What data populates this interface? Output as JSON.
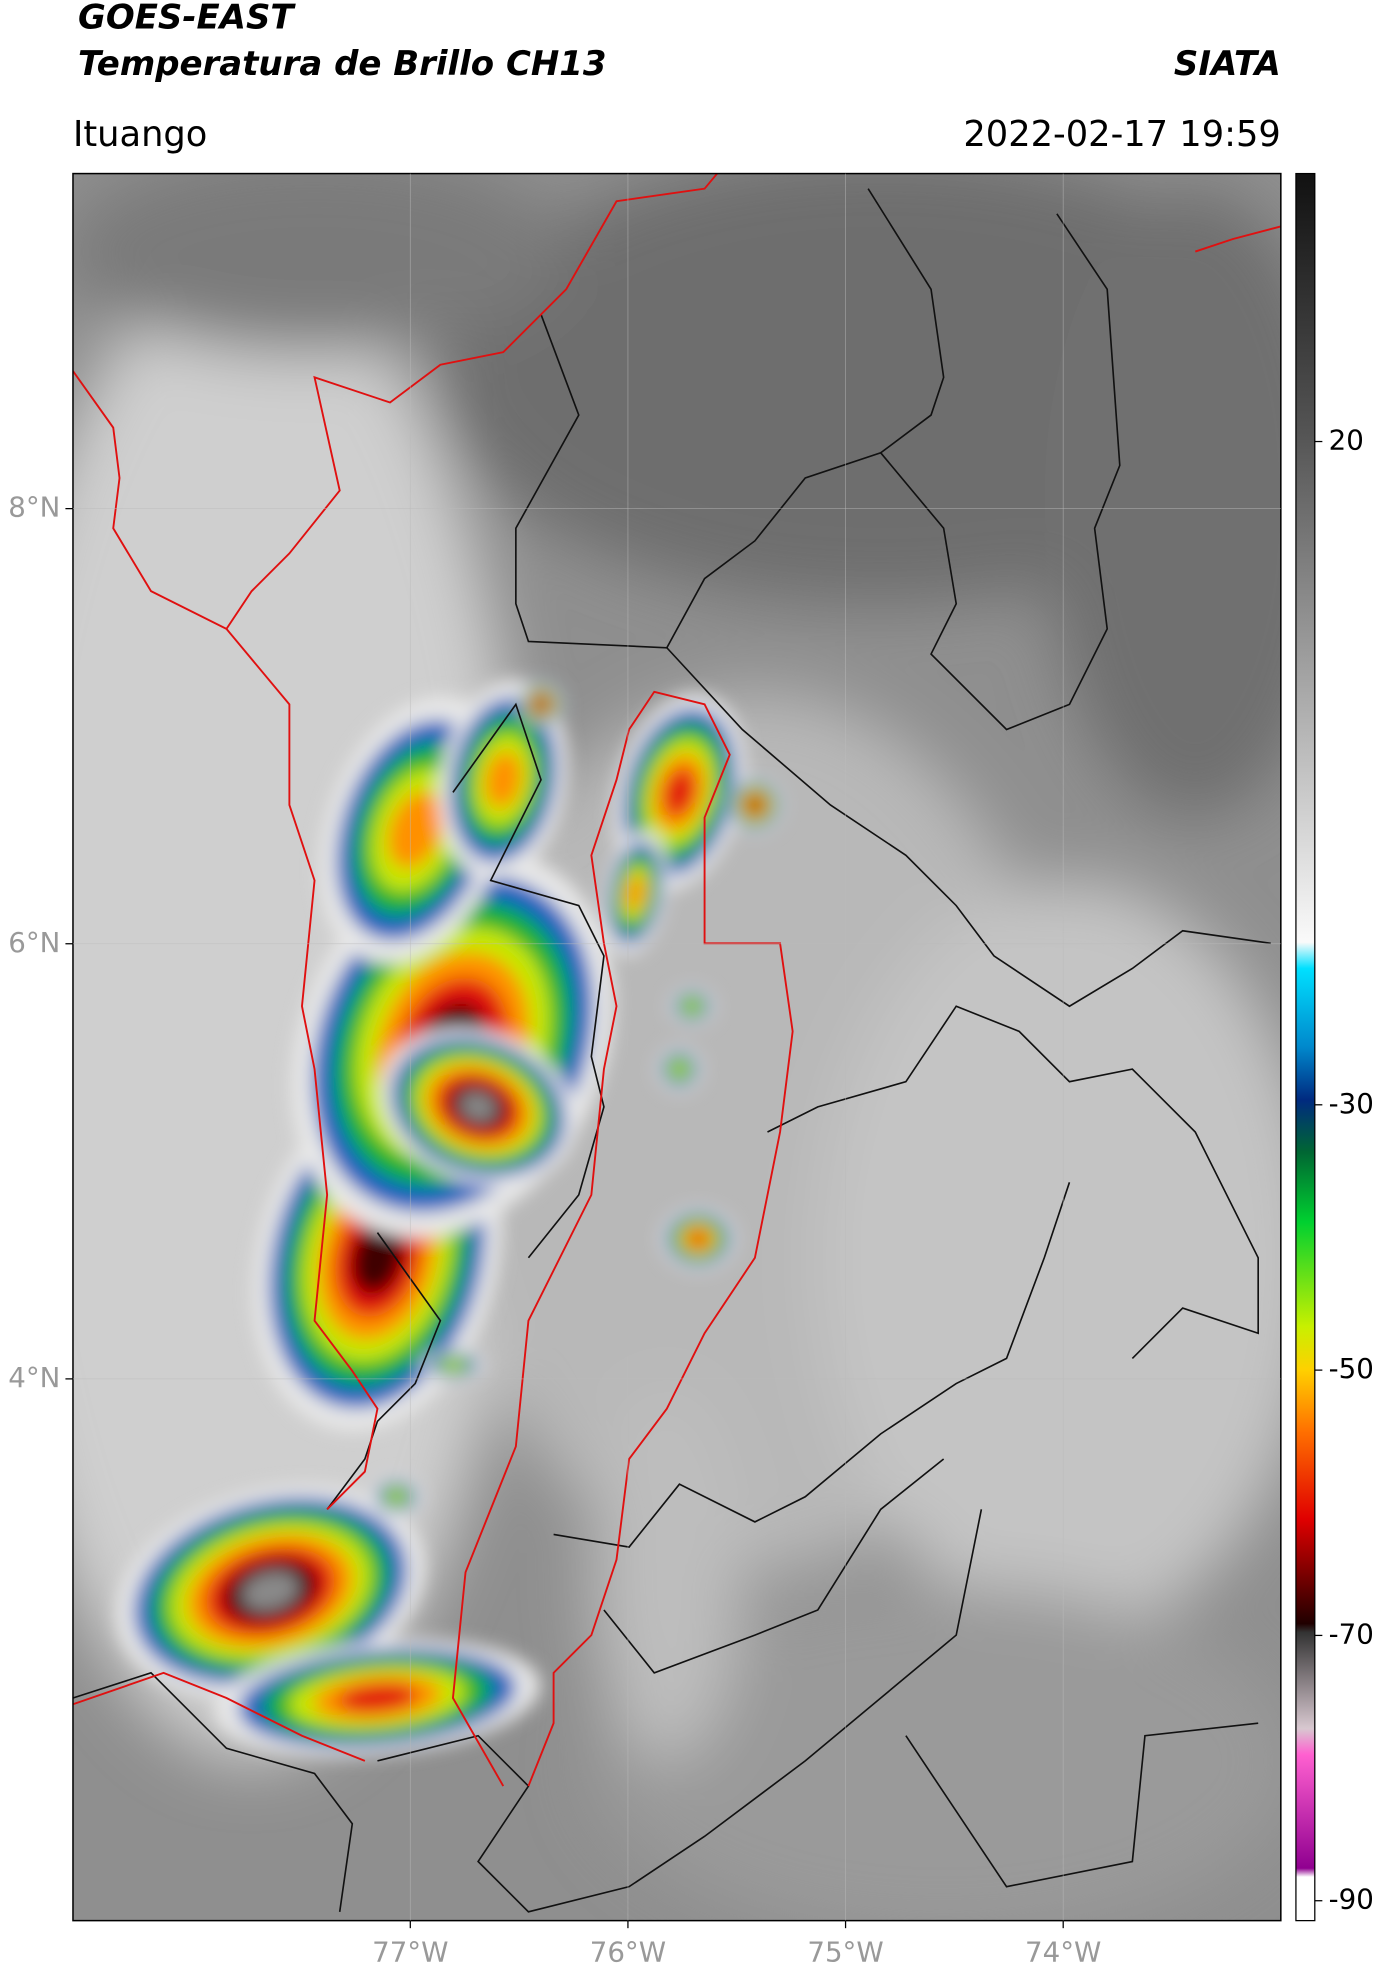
{
  "header": {
    "title": "GOES-EAST",
    "subtitle": "Temperatura de Brillo CH13",
    "agency": "SIATA",
    "location": "Ituango",
    "datetime": "2022-02-17 19:59"
  },
  "map": {
    "xlim": [
      -78.55,
      -73.0
    ],
    "ylim": [
      1.51,
      9.54
    ],
    "xticks": [
      {
        "value": -77,
        "label": "77°W"
      },
      {
        "value": -76,
        "label": "76°W"
      },
      {
        "value": -75,
        "label": "75°W"
      },
      {
        "value": -74,
        "label": "74°W"
      }
    ],
    "yticks": [
      {
        "value": 8,
        "label": "8°N"
      },
      {
        "value": 6,
        "label": "6°N"
      },
      {
        "value": 4,
        "label": "4°N"
      }
    ]
  },
  "colorbar": {
    "lim": [
      -91.5,
      40.2
    ],
    "ticks": [
      20,
      -30,
      -50,
      -70,
      -90
    ]
  }
}
